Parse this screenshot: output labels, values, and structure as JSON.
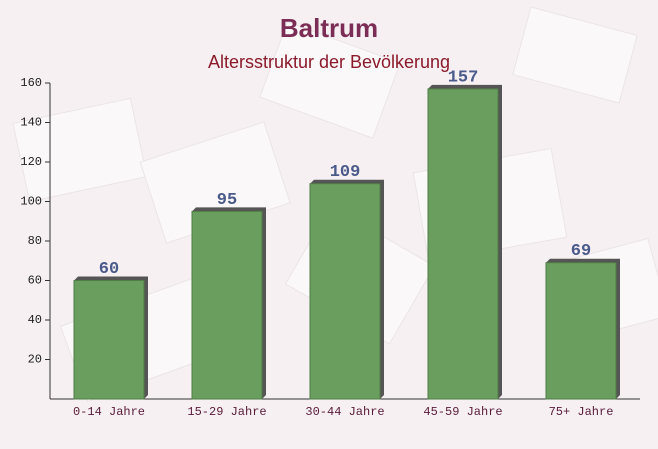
{
  "chart_data": {
    "type": "bar",
    "title": "Baltrum",
    "subtitle": "Altersstruktur der Bevölkerung",
    "categories": [
      "0-14 Jahre",
      "15-29 Jahre",
      "30-44 Jahre",
      "45-59 Jahre",
      "75+ Jahre"
    ],
    "values": [
      60,
      95,
      109,
      157,
      69
    ],
    "color": "#6a9e5e",
    "ylim": [
      0,
      160
    ],
    "yticks": [
      20,
      40,
      60,
      80,
      100,
      120,
      140,
      160
    ]
  }
}
